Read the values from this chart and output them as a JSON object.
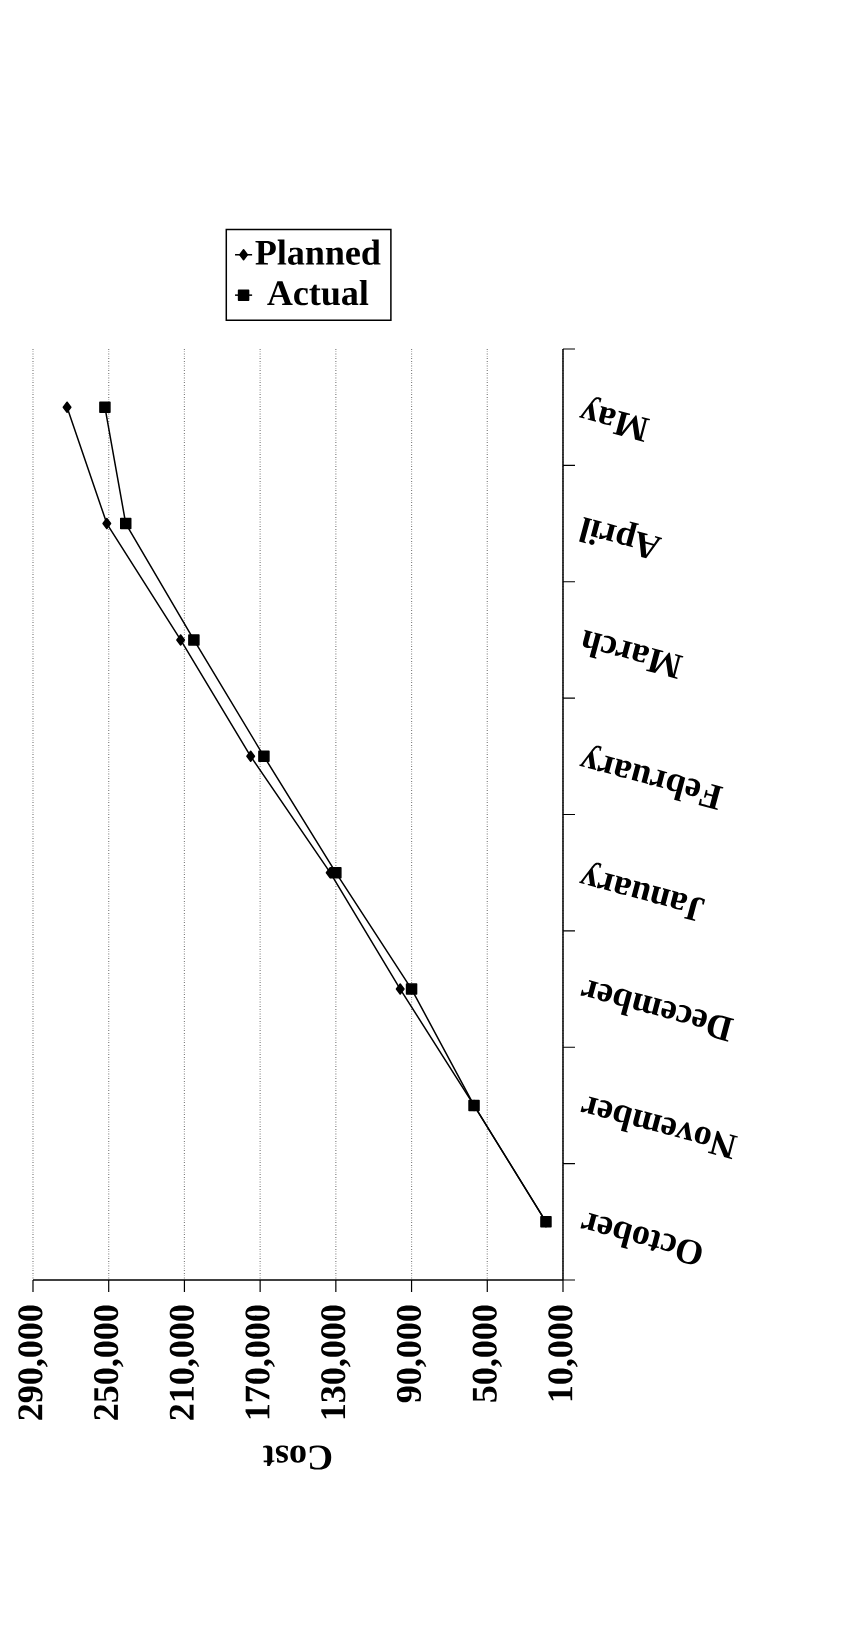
{
  "chart_data": {
    "type": "line",
    "orientation": "horizontal",
    "xlabel": "Cost",
    "categories": [
      "May",
      "April",
      "March",
      "February",
      "January",
      "December",
      "November",
      "October"
    ],
    "series": [
      {
        "name": "Planned",
        "color": "#000000",
        "marker": "diamond",
        "values": [
          272000,
          251000,
          212000,
          175000,
          133000,
          96000,
          57000,
          19000
        ]
      },
      {
        "name": "Actual",
        "color": "#000000",
        "marker": "square",
        "values": [
          252000,
          241000,
          205000,
          168000,
          130000,
          90000,
          57000,
          19000
        ]
      }
    ],
    "xlim": [
      290000,
      10000
    ],
    "xticks": [
      {
        "value": 10000,
        "label": "10,000"
      },
      {
        "value": 50000,
        "label": "50,000"
      },
      {
        "value": 90000,
        "label": "90,000"
      },
      {
        "value": 130000,
        "label": "130,000"
      },
      {
        "value": 170000,
        "label": "170,000"
      },
      {
        "value": 210000,
        "label": "210,000"
      },
      {
        "value": 250000,
        "label": "250,000"
      },
      {
        "value": 290000,
        "label": "290,000"
      }
    ],
    "grid": "x",
    "legend": "top",
    "line_style": "solid"
  }
}
